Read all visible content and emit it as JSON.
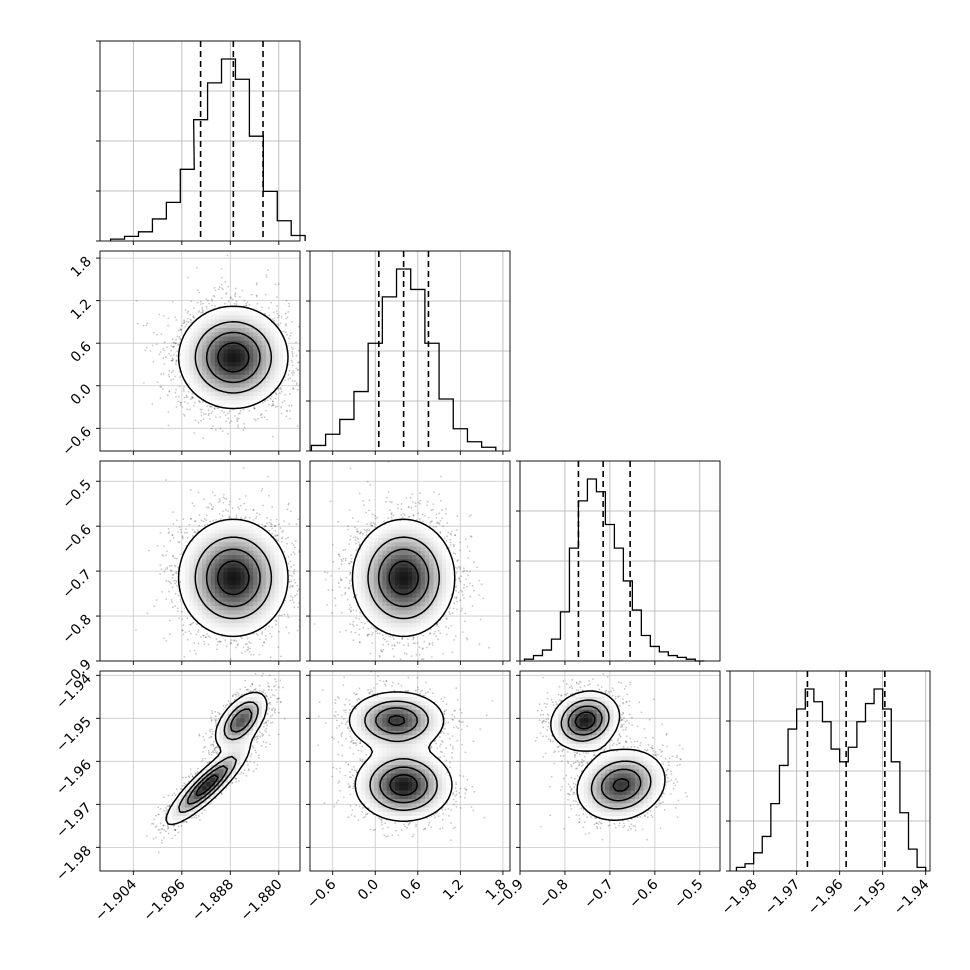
{
  "chart_data": {
    "type": "corner",
    "grid": true,
    "parameters": [
      {
        "range": [
          -1.9095,
          -1.8765
        ],
        "ticks": [
          -1.904,
          -1.896,
          -1.888,
          -1.88
        ],
        "tick_labels": [
          "−1.904",
          "−1.896",
          "−1.888",
          "−1.880"
        ],
        "quantiles": [
          -1.8929,
          -1.8875,
          -1.8826
        ],
        "histogram": {
          "bin_centers": [
            -1.9066,
            -1.9043,
            -1.902,
            -1.8997,
            -1.8974,
            -1.8951,
            -1.8929,
            -1.8906,
            -1.8883,
            -1.886,
            -1.8837,
            -1.8814,
            -1.8791,
            -1.8768
          ],
          "counts": [
            0.01,
            0.025,
            0.05,
            0.12,
            0.21,
            0.39,
            0.66,
            0.86,
            0.99,
            0.88,
            0.57,
            0.27,
            0.11,
            0.03
          ]
        }
      },
      {
        "range": [
          -0.92,
          1.9
        ],
        "ticks": [
          -0.6,
          0.0,
          0.6,
          1.2,
          1.8
        ],
        "tick_labels": [
          "−0.6",
          "0.0",
          "0.6",
          "1.2",
          "1.8"
        ],
        "quantiles": [
          0.05,
          0.4,
          0.75
        ],
        "histogram": {
          "bin_centers": [
            -0.8,
            -0.6,
            -0.4,
            -0.2,
            0.0,
            0.2,
            0.4,
            0.6,
            0.8,
            1.0,
            1.2,
            1.4,
            1.6
          ],
          "counts": [
            0.03,
            0.09,
            0.17,
            0.32,
            0.58,
            0.83,
            0.98,
            0.87,
            0.58,
            0.28,
            0.12,
            0.05,
            0.02
          ]
        }
      },
      {
        "range": [
          -0.9,
          -0.455
        ],
        "ticks": [
          -0.9,
          -0.8,
          -0.7,
          -0.6,
          -0.5
        ],
        "tick_labels": [
          "−0.9",
          "−0.8",
          "−0.7",
          "−0.6",
          "−0.5"
        ],
        "quantiles": [
          -0.77,
          -0.715,
          -0.655
        ],
        "histogram": {
          "bin_centers": [
            -0.88,
            -0.86,
            -0.84,
            -0.82,
            -0.8,
            -0.78,
            -0.76,
            -0.74,
            -0.72,
            -0.7,
            -0.68,
            -0.66,
            -0.64,
            -0.62,
            -0.6,
            -0.58,
            -0.56,
            -0.54,
            -0.52,
            -0.5
          ],
          "counts": [
            0.01,
            0.03,
            0.06,
            0.12,
            0.27,
            0.62,
            0.88,
            1.0,
            0.93,
            0.75,
            0.62,
            0.44,
            0.28,
            0.14,
            0.08,
            0.05,
            0.03,
            0.02,
            0.01,
            0.0
          ]
        }
      },
      {
        "range": [
          -1.9855,
          -1.939
        ],
        "ticks": [
          -1.98,
          -1.97,
          -1.96,
          -1.95,
          -1.94
        ],
        "tick_labels": [
          "−1.98",
          "−1.97",
          "−1.96",
          "−1.95",
          "−1.94"
        ],
        "quantiles": [
          -1.9675,
          -1.9585,
          -1.9495
        ],
        "histogram": {
          "bin_centers": [
            -1.983,
            -1.981,
            -1.979,
            -1.977,
            -1.975,
            -1.973,
            -1.971,
            -1.969,
            -1.967,
            -1.965,
            -1.963,
            -1.961,
            -1.959,
            -1.957,
            -1.955,
            -1.953,
            -1.951,
            -1.949,
            -1.947,
            -1.945,
            -1.943,
            -1.941
          ],
          "counts": [
            0.02,
            0.04,
            0.1,
            0.19,
            0.37,
            0.58,
            0.78,
            0.89,
            1.0,
            0.93,
            0.82,
            0.67,
            0.6,
            0.68,
            0.82,
            0.92,
            1.0,
            0.89,
            0.6,
            0.32,
            0.12,
            0.02
          ]
        }
      }
    ],
    "pairs": [
      {
        "row": 1,
        "col": 0,
        "modes": [
          {
            "mean": [
              -1.8875,
              0.4
            ],
            "sd": [
              0.0045,
              0.36
            ],
            "rho": 0.0,
            "weight": 1.0
          }
        ]
      },
      {
        "row": 2,
        "col": 0,
        "modes": [
          {
            "mean": [
              -1.8875,
              -0.715
            ],
            "sd": [
              0.0045,
              0.065
            ],
            "rho": 0.0,
            "weight": 1.0
          }
        ]
      },
      {
        "row": 2,
        "col": 1,
        "modes": [
          {
            "mean": [
              0.4,
              -0.715
            ],
            "sd": [
              0.36,
              0.065
            ],
            "rho": 0.0,
            "weight": 1.0
          }
        ]
      },
      {
        "row": 3,
        "col": 0,
        "modes": [
          {
            "mean": [
              -1.8918,
              -1.9655
            ],
            "sd": [
              0.0034,
              0.0046
            ],
            "rho": 0.88,
            "weight": 1.0
          },
          {
            "mean": [
              -1.8862,
              -1.9505
            ],
            "sd": [
              0.0022,
              0.0034
            ],
            "rho": 0.55,
            "weight": 0.85
          }
        ]
      },
      {
        "row": 3,
        "col": 1,
        "modes": [
          {
            "mean": [
              0.4,
              -1.9655
            ],
            "sd": [
              0.34,
              0.0042
            ],
            "rho": 0.0,
            "weight": 1.0
          },
          {
            "mean": [
              0.3,
              -1.9505
            ],
            "sd": [
              0.34,
              0.0034
            ],
            "rho": 0.0,
            "weight": 0.9
          }
        ]
      },
      {
        "row": 3,
        "col": 2,
        "modes": [
          {
            "mean": [
              -0.675,
              -1.9655
            ],
            "sd": [
              0.05,
              0.0042
            ],
            "rho": 0.15,
            "weight": 0.9
          },
          {
            "mean": [
              -0.755,
              -1.9505
            ],
            "sd": [
              0.038,
              0.0034
            ],
            "rho": 0.15,
            "weight": 1.0
          }
        ]
      }
    ]
  }
}
